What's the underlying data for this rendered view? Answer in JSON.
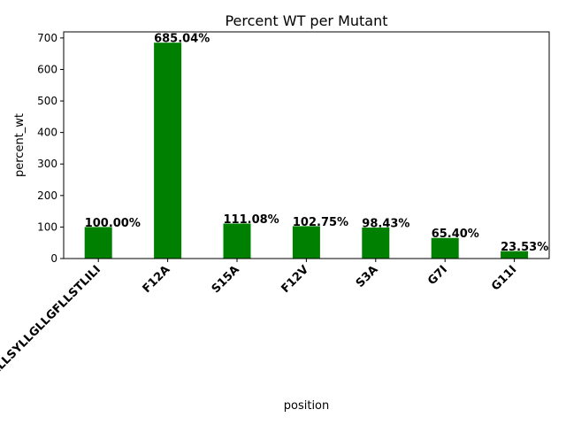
{
  "chart_data": {
    "type": "bar",
    "title": "Percent WT per Mutant",
    "xlabel": "position",
    "ylabel": "percent_wt",
    "categories": [
      "LLLSYLLGLLGFLLSTLILI",
      "F12A",
      "S15A",
      "F12V",
      "S3A",
      "G7I",
      "G11I"
    ],
    "values": [
      100.0,
      685.04,
      111.08,
      102.75,
      98.43,
      65.4,
      23.53
    ],
    "data_labels": [
      "100.00%",
      "685.04%",
      "111.08%",
      "102.75%",
      "98.43%",
      "65.40%",
      "23.53%"
    ],
    "yticks": [
      0,
      100,
      200,
      300,
      400,
      500,
      600,
      700
    ],
    "ylim": [
      0,
      719.3
    ],
    "bar_color": "#008000",
    "grid": false,
    "legend": "none"
  }
}
